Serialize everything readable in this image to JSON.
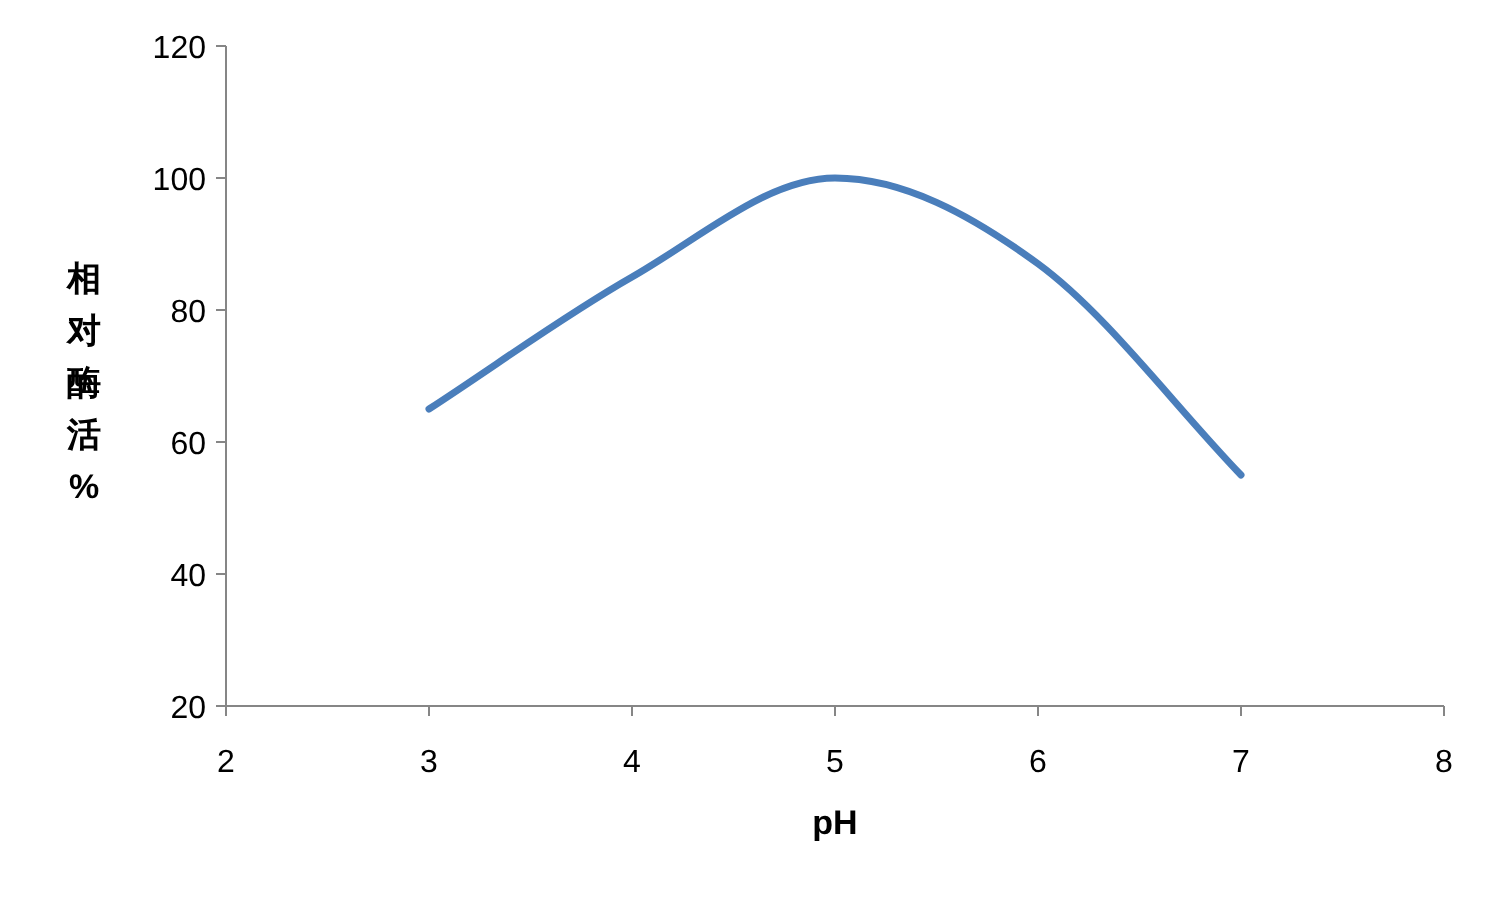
{
  "chart_data": {
    "type": "line",
    "xlabel": "pH",
    "ylabel": "相对酶活%",
    "x": [
      3,
      4,
      5,
      6,
      7
    ],
    "values": [
      65,
      85,
      100,
      87,
      55
    ],
    "color": "#4a7ebb",
    "xlim": [
      2,
      8
    ],
    "ylim": [
      20,
      120
    ],
    "xticks": [
      2,
      3,
      4,
      5,
      6,
      7,
      8
    ],
    "yticks": [
      20,
      40,
      60,
      80,
      100,
      120
    ]
  }
}
